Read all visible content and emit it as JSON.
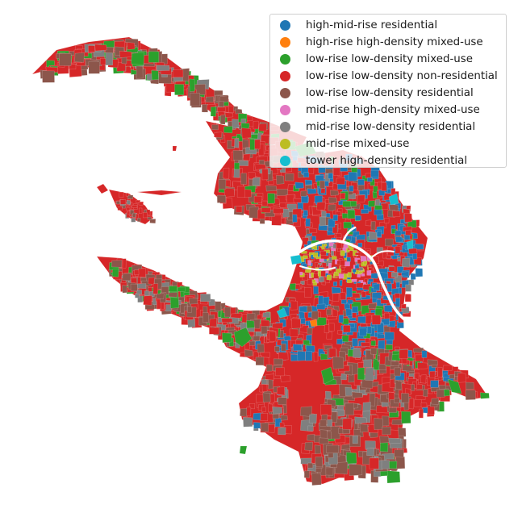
{
  "legend": {
    "items": [
      {
        "label": "high-mid-rise residential",
        "color": "#1f77b4"
      },
      {
        "label": "high-rise high-density mixed-use",
        "color": "#ff7f0e"
      },
      {
        "label": "low-rise low-density mixed-use",
        "color": "#2ca02c"
      },
      {
        "label": "low-rise low-density non-residential",
        "color": "#d62728"
      },
      {
        "label": "low-rise low-density residential",
        "color": "#8c564b"
      },
      {
        "label": "mid-rise high-density mixed-use",
        "color": "#e377c2"
      },
      {
        "label": "mid-rise low-density residential",
        "color": "#7f7f7f"
      },
      {
        "label": "mid-rise mixed-use",
        "color": "#bcbd22"
      },
      {
        "label": "tower high-density residential",
        "color": "#17becf"
      }
    ]
  }
}
